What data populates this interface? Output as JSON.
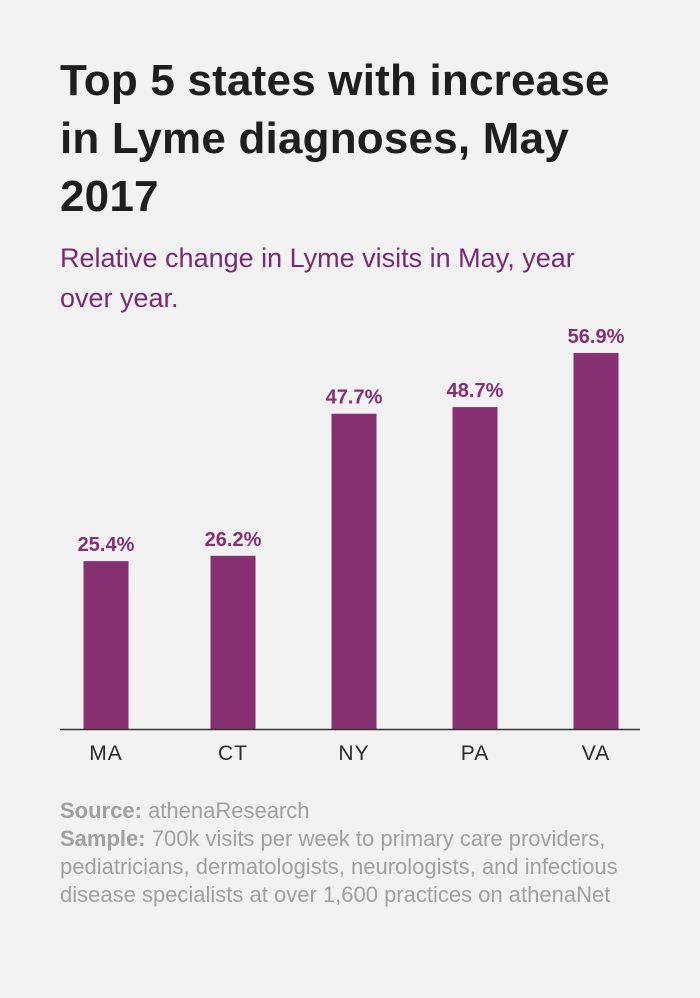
{
  "title": "Top 5 states with increase in Lyme diagnoses, May 2017",
  "subtitle": "Relative change in Lyme visits in May, year over year.",
  "footer": {
    "source_label": "Source:",
    "source_text": "athenaResearch",
    "sample_label": "Sample:",
    "sample_text": "700k visits per week to primary care providers, pediatricians, dermatologists, neurologists, and infectious disease specialists at over 1,600 practices on athenaNet"
  },
  "colors": {
    "bar": "#862f71",
    "label": "#862f71",
    "axis": "#333333",
    "tick": "#2b2b2b"
  },
  "chart_data": {
    "type": "bar",
    "categories": [
      "MA",
      "CT",
      "NY",
      "PA",
      "VA"
    ],
    "values": [
      25.4,
      26.2,
      47.7,
      48.7,
      56.9
    ],
    "data_labels": [
      "25.4%",
      "26.2%",
      "47.7%",
      "48.7%",
      "56.9%"
    ],
    "title": "Top 5 states with increase in Lyme diagnoses, May 2017",
    "subtitle": "Relative change in Lyme visits in May, year over year.",
    "ylim": [
      0,
      64.3
    ],
    "grid": false,
    "legend": "none"
  }
}
